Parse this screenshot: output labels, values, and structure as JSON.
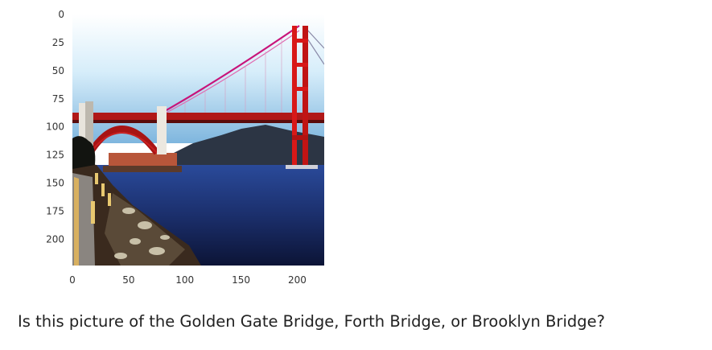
{
  "figure": {
    "x_ticks": [
      "0",
      "50",
      "100",
      "150",
      "200"
    ],
    "y_ticks": [
      "0",
      "25",
      "50",
      "75",
      "100",
      "125",
      "150",
      "175",
      "200"
    ],
    "image_subject": "golden-gate-bridge-photo"
  },
  "question": "Is this picture of the Golden Gate Bridge, Forth Bridge, or Brooklyn Bridge?",
  "colors": {
    "bridge_red": "#d81818",
    "sky": "#bfe2f6",
    "water": "#1c2f6e",
    "mountain": "#2c3544"
  }
}
